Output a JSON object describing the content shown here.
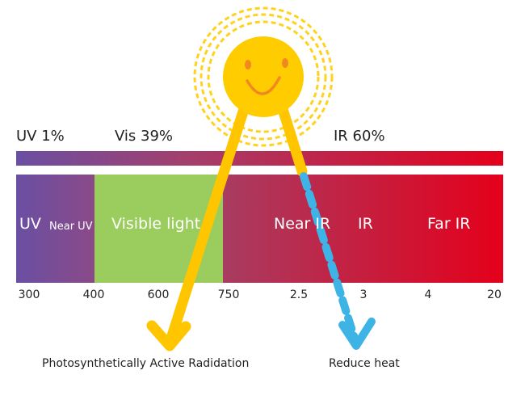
{
  "fractions": [
    {
      "label": "UV 1%"
    },
    {
      "label": "Vis 39%"
    },
    {
      "label": "IR 60%"
    }
  ],
  "bands": {
    "uv": "UV",
    "near_uv": "Near UV",
    "visible": "Visible light",
    "near_ir": "Near IR",
    "ir": "IR",
    "far_ir": "Far IR"
  },
  "ticks": [
    "300",
    "400",
    "600",
    "750",
    "2.5",
    "3",
    "4",
    "20"
  ],
  "captions": {
    "par": "Photosynthetically Active Radidation",
    "reduce_heat": "Reduce heat"
  },
  "colors": {
    "sun": "#FFCC00",
    "sun_ring": "#FFD21F",
    "smile": "#F08A20",
    "arrow_yellow": "#FFC600",
    "arrow_blue": "#3EB4E6",
    "uv_purple": "#6A4FA3",
    "visible_green": "#9ACD5E",
    "ir_red": "#E4001B"
  }
}
